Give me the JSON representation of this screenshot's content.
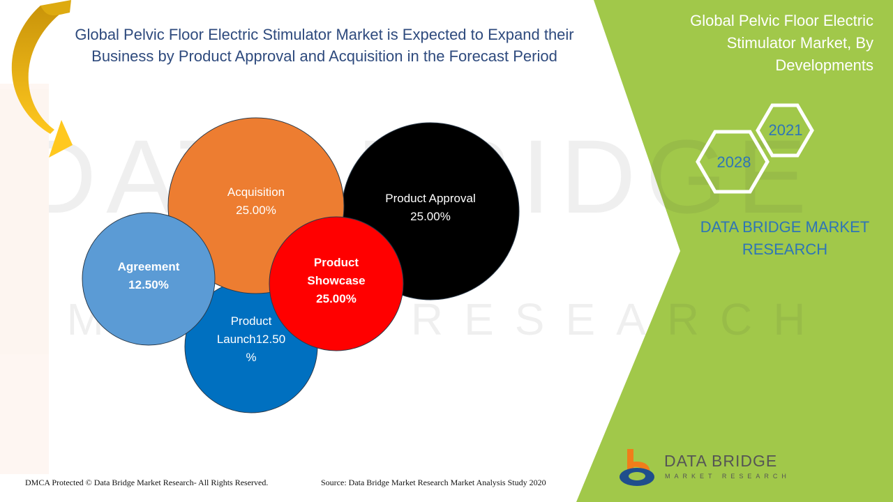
{
  "slide": {
    "title_line1": "Global Pelvic Floor Electric Stimulator Market is Expected to Expand their",
    "title_line2": "Business by Product Approval and Acquisition in the Forecast Period",
    "side_title_line1": "Global Pelvic Floor Electric",
    "side_title_line2": "Stimulator Market, By",
    "side_title_line3": "Developments",
    "year_a": "2021",
    "year_b": "2028",
    "brand_line1": "DATA BRIDGE MARKET",
    "brand_line2": "RESEARCH",
    "footer_left": "DMCA Protected © Data Bridge Market Research- All Rights Reserved.",
    "footer_source": "Source: Data Bridge Market Research Market Analysis Study 2020",
    "logo_main": "DATA BRIDGE",
    "logo_sub": "MARKET RESEARCH",
    "watermark_main": "DATA BRIDGE",
    "watermark_sub": "MARKET RESEARCH"
  },
  "colors": {
    "title": "#2e4a7d",
    "green_panel": "#a1c84a",
    "acquisition": "#ed7d31",
    "product_approval": "#000000",
    "agreement": "#5b9bd5",
    "product_launch": "#0070c0",
    "product_showcase": "#ff0000",
    "brand_text": "#2e75b6",
    "arrow": "#f0b81a"
  },
  "chart_data": {
    "type": "bubble",
    "series": [
      {
        "label_lines": [
          "Acquisition",
          "25.00%"
        ],
        "value": 25.0,
        "bold": false
      },
      {
        "label_lines": [
          "Product Approval",
          "25.00%"
        ],
        "value": 25.0,
        "bold": false
      },
      {
        "label_lines": [
          "Agreement",
          "12.50%"
        ],
        "value": 12.5,
        "bold": true
      },
      {
        "label_lines": [
          "Product",
          "Launch12.50",
          "%"
        ],
        "value": 12.5,
        "bold": false
      },
      {
        "label_lines": [
          "Product",
          "Showcase",
          "25.00%"
        ],
        "value": 25.0,
        "bold": true
      }
    ]
  }
}
